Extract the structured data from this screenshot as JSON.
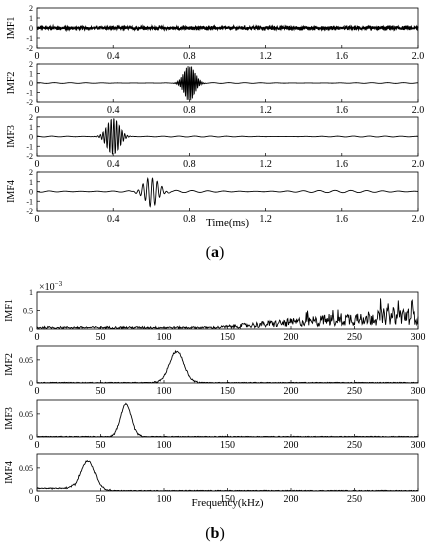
{
  "figure": {
    "caption_a": "a",
    "caption_b": "b"
  },
  "chart_data": [
    {
      "type": "line",
      "panel": "a",
      "xlabel": "Time(ms)",
      "x_ticks": [
        "0",
        "0.4",
        "0.8",
        "1.2",
        "1.6",
        "2.0"
      ],
      "xlim": [
        0,
        2.0
      ],
      "ylim": [
        -2,
        2
      ],
      "y_ticks": [
        "2",
        "1",
        "0",
        "-1",
        "-2"
      ],
      "grid": false,
      "series": [
        {
          "name": "IMF1",
          "description": "dense high-frequency oscillation across full range, amplitude ~0.1",
          "bursts": [],
          "noise_amp": 0.12
        },
        {
          "name": "IMF2",
          "bursts": [
            {
              "center": 0.8,
              "amp": 1.9,
              "width": 0.04,
              "freq_khz": 110
            }
          ],
          "noise_amp": 0.04
        },
        {
          "name": "IMF3",
          "bursts": [
            {
              "center": 0.4,
              "amp": 1.9,
              "width": 0.045,
              "freq_khz": 70
            }
          ],
          "noise_amp": 0.05
        },
        {
          "name": "IMF4",
          "bursts": [
            {
              "center": 0.6,
              "amp": 1.5,
              "width": 0.05,
              "freq_khz": 40
            }
          ],
          "noise_amp": 0.12
        }
      ]
    },
    {
      "type": "line",
      "panel": "b",
      "xlabel": "Frequency(kHz)",
      "x_ticks": [
        "0",
        "50",
        "100",
        "150",
        "200",
        "250",
        "300"
      ],
      "xlim": [
        0,
        300
      ],
      "grid": false,
      "series": [
        {
          "name": "IMF1",
          "exponent_label": "×10",
          "exponent": "−3",
          "y_ticks": [
            "1",
            "0.5",
            "0"
          ],
          "ylim": [
            0,
            1.0
          ],
          "shape": "rising noisy spectrum from ~150 kHz to 300 kHz",
          "peak_center": null,
          "peak_amp": 0.0
        },
        {
          "name": "IMF2",
          "y_ticks": [
            "0.05",
            "0"
          ],
          "ylim": [
            0,
            0.08
          ],
          "peak_center": 110,
          "peak_amp": 0.068,
          "peak_width": 8
        },
        {
          "name": "IMF3",
          "y_ticks": [
            "0.05",
            "0"
          ],
          "ylim": [
            0,
            0.08
          ],
          "peak_center": 70,
          "peak_amp": 0.07,
          "peak_width": 6
        },
        {
          "name": "IMF4",
          "y_ticks": [
            "0.05",
            "0"
          ],
          "ylim": [
            0,
            0.08
          ],
          "peak_center": 40,
          "peak_amp": 0.065,
          "peak_width": 8
        }
      ]
    }
  ]
}
